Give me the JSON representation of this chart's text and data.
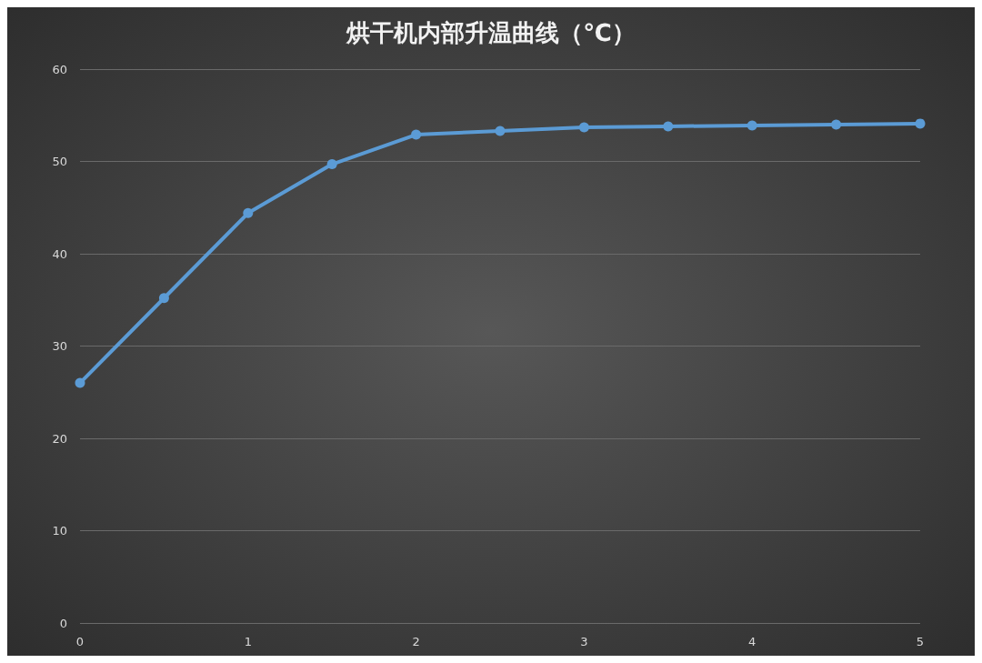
{
  "chart_data": {
    "type": "line",
    "title": "烘干机内部升温曲线（℃）",
    "x": [
      0,
      0.5,
      1,
      1.5,
      2,
      2.5,
      3,
      3.5,
      4,
      4.5,
      5
    ],
    "series": [
      {
        "color": "#5b9bd5",
        "values": [
          26.0,
          35.2,
          44.4,
          49.7,
          52.9,
          53.3,
          53.7,
          53.8,
          53.9,
          54.0,
          54.1
        ]
      }
    ],
    "xlim": [
      0,
      5
    ],
    "xticks": [
      0,
      1,
      2,
      3,
      4,
      5
    ],
    "ylim": [
      0,
      60
    ],
    "yticks": [
      0,
      10,
      20,
      30,
      40,
      50,
      60
    ],
    "grid": "y",
    "marker": "circle",
    "line_style": "solid"
  }
}
